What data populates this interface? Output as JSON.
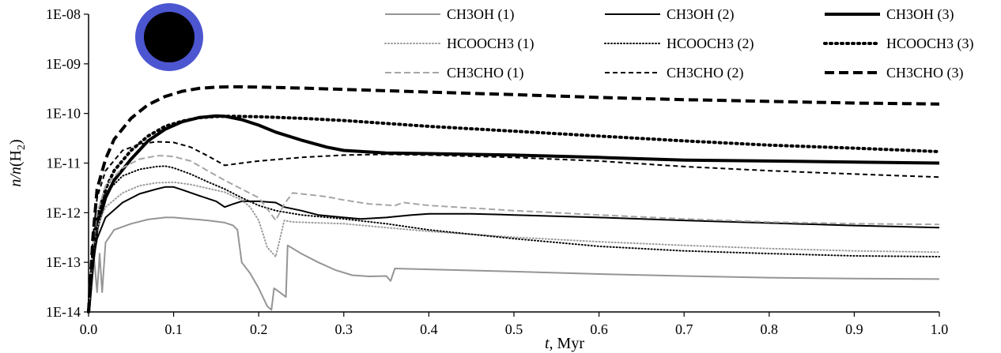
{
  "chart_data": {
    "type": "line",
    "title": "",
    "xlabel": "t, Myr",
    "ylabel": "n/n(H2)",
    "ylabel_display": {
      "italic_part": "n/n",
      "paren_open": "(",
      "base": "H",
      "subscript": "2",
      "paren_close": ")"
    },
    "xlabel_display": {
      "italic_part": "t",
      "rest": ", Myr"
    },
    "xlim": [
      0,
      1.0
    ],
    "ylim": [
      1e-14,
      1e-08
    ],
    "yscale": "log",
    "grid": false,
    "legend_position": "top-right",
    "x_ticks": [
      "0.0",
      "0.1",
      "0.2",
      "0.3",
      "0.4",
      "0.5",
      "0.6",
      "0.7",
      "0.8",
      "0.9",
      "1.0"
    ],
    "y_ticks": [
      "1E-14",
      "1E-13",
      "1E-12",
      "1E-11",
      "1E-10",
      "1E-09",
      "1E-08"
    ],
    "inset_marker": {
      "shape": "filled circle",
      "fill": "#000000",
      "ring": "#4c56d1"
    },
    "series": [
      {
        "name": "CH3OH (1)",
        "color": "#959595",
        "width": 2,
        "dash": "",
        "points": [
          [
            0.0,
            1e-14
          ],
          [
            0.003,
            5e-14
          ],
          [
            0.006,
            1.5e-13
          ],
          [
            0.01,
            2.5e-14
          ],
          [
            0.013,
            1.5e-13
          ],
          [
            0.016,
            2.5e-14
          ],
          [
            0.02,
            2.5e-13
          ],
          [
            0.03,
            4.5e-13
          ],
          [
            0.05,
            6e-13
          ],
          [
            0.07,
            7.3e-13
          ],
          [
            0.09,
            8e-13
          ],
          [
            0.1,
            8e-13
          ],
          [
            0.12,
            7.5e-13
          ],
          [
            0.14,
            7e-13
          ],
          [
            0.16,
            6.3e-13
          ],
          [
            0.17,
            5.5e-13
          ],
          [
            0.175,
            4.5e-13
          ],
          [
            0.18,
            1e-13
          ],
          [
            0.19,
            6e-14
          ],
          [
            0.2,
            3e-14
          ],
          [
            0.21,
            1.3e-14
          ],
          [
            0.215,
            1.1e-14
          ],
          [
            0.218,
            3e-14
          ],
          [
            0.222,
            2.7e-14
          ],
          [
            0.232,
            2e-14
          ],
          [
            0.234,
            2.2e-13
          ],
          [
            0.25,
            1.5e-13
          ],
          [
            0.27,
            1e-13
          ],
          [
            0.29,
            7e-14
          ],
          [
            0.31,
            5.5e-14
          ],
          [
            0.33,
            5.2e-14
          ],
          [
            0.35,
            5.3e-14
          ],
          [
            0.355,
            4.2e-14
          ],
          [
            0.36,
            7.5e-14
          ],
          [
            0.4,
            7.2e-14
          ],
          [
            0.5,
            6.5e-14
          ],
          [
            0.6,
            5.8e-14
          ],
          [
            0.7,
            5.3e-14
          ],
          [
            0.8,
            4.9e-14
          ],
          [
            0.9,
            4.7e-14
          ],
          [
            1.0,
            4.6e-14
          ]
        ]
      },
      {
        "name": "CH3OH (2)",
        "color": "#000000",
        "width": 2,
        "dash": "",
        "points": [
          [
            0.0,
            1e-14
          ],
          [
            0.005,
            1e-13
          ],
          [
            0.01,
            3e-13
          ],
          [
            0.02,
            8e-13
          ],
          [
            0.04,
            1.6e-12
          ],
          [
            0.06,
            2.4e-12
          ],
          [
            0.08,
            3e-12
          ],
          [
            0.09,
            3.3e-12
          ],
          [
            0.1,
            3.3e-12
          ],
          [
            0.11,
            2.9e-12
          ],
          [
            0.13,
            2.2e-12
          ],
          [
            0.15,
            1.7e-12
          ],
          [
            0.16,
            1.3e-12
          ],
          [
            0.17,
            1.5e-12
          ],
          [
            0.18,
            1.7e-12
          ],
          [
            0.2,
            1.7e-12
          ],
          [
            0.22,
            1.6e-12
          ],
          [
            0.23,
            1.3e-12
          ],
          [
            0.25,
            1.1e-12
          ],
          [
            0.27,
            9e-13
          ],
          [
            0.3,
            8e-13
          ],
          [
            0.32,
            7.5e-13
          ],
          [
            0.35,
            8e-13
          ],
          [
            0.38,
            9e-13
          ],
          [
            0.4,
            9.5e-13
          ],
          [
            0.45,
            9.5e-13
          ],
          [
            0.5,
            9e-13
          ],
          [
            0.6,
            8e-13
          ],
          [
            0.7,
            7e-13
          ],
          [
            0.8,
            6.2e-13
          ],
          [
            0.9,
            5.5e-13
          ],
          [
            1.0,
            5e-13
          ]
        ]
      },
      {
        "name": "CH3OH (3)",
        "color": "#000000",
        "width": 4,
        "dash": "",
        "points": [
          [
            0.0,
            1e-14
          ],
          [
            0.005,
            1e-13
          ],
          [
            0.01,
            5e-13
          ],
          [
            0.02,
            2e-12
          ],
          [
            0.03,
            4.5e-12
          ],
          [
            0.05,
            1.2e-11
          ],
          [
            0.07,
            2.8e-11
          ],
          [
            0.09,
            4.8e-11
          ],
          [
            0.11,
            6.8e-11
          ],
          [
            0.13,
            8.3e-11
          ],
          [
            0.15,
            8.9e-11
          ],
          [
            0.16,
            8.8e-11
          ],
          [
            0.18,
            7.5e-11
          ],
          [
            0.2,
            5.8e-11
          ],
          [
            0.22,
            4.2e-11
          ],
          [
            0.25,
            2.9e-11
          ],
          [
            0.28,
            2.1e-11
          ],
          [
            0.3,
            1.8e-11
          ],
          [
            0.35,
            1.6e-11
          ],
          [
            0.4,
            1.55e-11
          ],
          [
            0.5,
            1.45e-11
          ],
          [
            0.6,
            1.3e-11
          ],
          [
            0.7,
            1.15e-11
          ],
          [
            0.8,
            1.1e-11
          ],
          [
            0.9,
            1.05e-11
          ],
          [
            1.0,
            1e-11
          ]
        ]
      },
      {
        "name": "HCOOCH3 (1)",
        "color": "#9a9a9a",
        "width": 2,
        "dash": "1,3",
        "points": [
          [
            0.0,
            1e-14
          ],
          [
            0.005,
            1.5e-13
          ],
          [
            0.01,
            5e-13
          ],
          [
            0.02,
            1.3e-12
          ],
          [
            0.04,
            2.5e-12
          ],
          [
            0.06,
            3.5e-12
          ],
          [
            0.08,
            4e-12
          ],
          [
            0.1,
            4.1e-12
          ],
          [
            0.12,
            3.7e-12
          ],
          [
            0.14,
            3.1e-12
          ],
          [
            0.16,
            2.6e-12
          ],
          [
            0.18,
            1.8e-12
          ],
          [
            0.19,
            1.3e-12
          ],
          [
            0.2,
            7e-13
          ],
          [
            0.21,
            2e-13
          ],
          [
            0.22,
            1.3e-13
          ],
          [
            0.23,
            7e-13
          ],
          [
            0.24,
            6.5e-13
          ],
          [
            0.3,
            6e-13
          ],
          [
            0.35,
            5e-13
          ],
          [
            0.4,
            4.2e-13
          ],
          [
            0.5,
            3.2e-13
          ],
          [
            0.6,
            2.6e-13
          ],
          [
            0.7,
            2.2e-13
          ],
          [
            0.8,
            1.9e-13
          ],
          [
            0.9,
            1.7e-13
          ],
          [
            1.0,
            1.6e-13
          ]
        ]
      },
      {
        "name": "HCOOCH3 (2)",
        "color": "#000000",
        "width": 2,
        "dash": "1,3",
        "points": [
          [
            0.0,
            1e-14
          ],
          [
            0.005,
            2e-13
          ],
          [
            0.01,
            8e-13
          ],
          [
            0.02,
            2.5e-12
          ],
          [
            0.04,
            5.5e-12
          ],
          [
            0.06,
            7.5e-12
          ],
          [
            0.08,
            8.5e-12
          ],
          [
            0.09,
            8.7e-12
          ],
          [
            0.1,
            8e-12
          ],
          [
            0.12,
            6e-12
          ],
          [
            0.14,
            4.2e-12
          ],
          [
            0.16,
            3e-12
          ],
          [
            0.18,
            2e-12
          ],
          [
            0.2,
            1.4e-12
          ],
          [
            0.22,
            1.1e-12
          ],
          [
            0.25,
            9e-13
          ],
          [
            0.3,
            7.5e-13
          ],
          [
            0.35,
            6e-13
          ],
          [
            0.4,
            4.5e-13
          ],
          [
            0.5,
            3e-13
          ],
          [
            0.6,
            2.1e-13
          ],
          [
            0.7,
            1.7e-13
          ],
          [
            0.8,
            1.5e-13
          ],
          [
            0.9,
            1.35e-13
          ],
          [
            1.0,
            1.3e-13
          ]
        ]
      },
      {
        "name": "HCOOCH3 (3)",
        "color": "#000000",
        "width": 4,
        "dash": "2,5",
        "points": [
          [
            0.0,
            1e-14
          ],
          [
            0.005,
            1.5e-13
          ],
          [
            0.01,
            8e-13
          ],
          [
            0.02,
            3e-12
          ],
          [
            0.03,
            7e-12
          ],
          [
            0.05,
            1.8e-11
          ],
          [
            0.07,
            3.5e-11
          ],
          [
            0.09,
            5.5e-11
          ],
          [
            0.11,
            7e-11
          ],
          [
            0.13,
            8.2e-11
          ],
          [
            0.15,
            8.7e-11
          ],
          [
            0.17,
            8.8e-11
          ],
          [
            0.2,
            8.6e-11
          ],
          [
            0.25,
            8e-11
          ],
          [
            0.3,
            7.2e-11
          ],
          [
            0.35,
            6.3e-11
          ],
          [
            0.4,
            5.5e-11
          ],
          [
            0.5,
            4.4e-11
          ],
          [
            0.6,
            3.5e-11
          ],
          [
            0.7,
            2.8e-11
          ],
          [
            0.8,
            2.3e-11
          ],
          [
            0.9,
            2e-11
          ],
          [
            1.0,
            1.7e-11
          ]
        ]
      },
      {
        "name": "CH3CHO (1)",
        "color": "#a6a6a6",
        "width": 2,
        "dash": "8,4",
        "points": [
          [
            0.0,
            1e-14
          ],
          [
            0.005,
            2e-13
          ],
          [
            0.01,
            1e-12
          ],
          [
            0.02,
            3.5e-12
          ],
          [
            0.04,
            8e-12
          ],
          [
            0.06,
            1.2e-11
          ],
          [
            0.08,
            1.4e-11
          ],
          [
            0.09,
            1.4e-11
          ],
          [
            0.1,
            1.35e-11
          ],
          [
            0.12,
            1.1e-11
          ],
          [
            0.14,
            7e-12
          ],
          [
            0.16,
            4.5e-12
          ],
          [
            0.18,
            3e-12
          ],
          [
            0.2,
            2e-12
          ],
          [
            0.21,
            1.2e-12
          ],
          [
            0.22,
            7e-13
          ],
          [
            0.23,
            1.5e-12
          ],
          [
            0.24,
            2.5e-12
          ],
          [
            0.26,
            2.3e-12
          ],
          [
            0.28,
            2.1e-12
          ],
          [
            0.3,
            1.8e-12
          ],
          [
            0.33,
            1.5e-12
          ],
          [
            0.36,
            1.4e-12
          ],
          [
            0.37,
            1.6e-12
          ],
          [
            0.4,
            1.4e-12
          ],
          [
            0.5,
            1.1e-12
          ],
          [
            0.6,
            9e-13
          ],
          [
            0.7,
            7.5e-13
          ],
          [
            0.8,
            6.5e-13
          ],
          [
            0.9,
            6e-13
          ],
          [
            1.0,
            5.8e-13
          ]
        ]
      },
      {
        "name": "CH3CHO (2)",
        "color": "#000000",
        "width": 2,
        "dash": "6,4",
        "points": [
          [
            0.0,
            1e-14
          ],
          [
            0.005,
            3e-13
          ],
          [
            0.01,
            2e-12
          ],
          [
            0.02,
            7e-12
          ],
          [
            0.04,
            1.8e-11
          ],
          [
            0.06,
            2.4e-11
          ],
          [
            0.08,
            2.7e-11
          ],
          [
            0.1,
            2.6e-11
          ],
          [
            0.12,
            2.1e-11
          ],
          [
            0.14,
            1.4e-11
          ],
          [
            0.16,
            9e-12
          ],
          [
            0.18,
            1e-11
          ],
          [
            0.2,
            1.1e-11
          ],
          [
            0.25,
            1.3e-11
          ],
          [
            0.3,
            1.45e-11
          ],
          [
            0.35,
            1.5e-11
          ],
          [
            0.4,
            1.45e-11
          ],
          [
            0.5,
            1.3e-11
          ],
          [
            0.6,
            1.1e-11
          ],
          [
            0.7,
            8.5e-12
          ],
          [
            0.8,
            7e-12
          ],
          [
            0.9,
            6e-12
          ],
          [
            1.0,
            5.2e-12
          ]
        ]
      },
      {
        "name": "CH3CHO (3)",
        "color": "#000000",
        "width": 4,
        "dash": "12,6",
        "points": [
          [
            0.0,
            1e-14
          ],
          [
            0.005,
            3e-13
          ],
          [
            0.01,
            3e-12
          ],
          [
            0.02,
            1.2e-11
          ],
          [
            0.03,
            3e-11
          ],
          [
            0.05,
            8e-11
          ],
          [
            0.07,
            1.5e-10
          ],
          [
            0.09,
            2.2e-10
          ],
          [
            0.11,
            2.8e-10
          ],
          [
            0.13,
            3.2e-10
          ],
          [
            0.15,
            3.4e-10
          ],
          [
            0.17,
            3.45e-10
          ],
          [
            0.2,
            3.4e-10
          ],
          [
            0.25,
            3.25e-10
          ],
          [
            0.3,
            3.05e-10
          ],
          [
            0.4,
            2.7e-10
          ],
          [
            0.5,
            2.4e-10
          ],
          [
            0.6,
            2.1e-10
          ],
          [
            0.7,
            1.9e-10
          ],
          [
            0.8,
            1.75e-10
          ],
          [
            0.9,
            1.62e-10
          ],
          [
            1.0,
            1.55e-10
          ]
        ]
      }
    ]
  }
}
